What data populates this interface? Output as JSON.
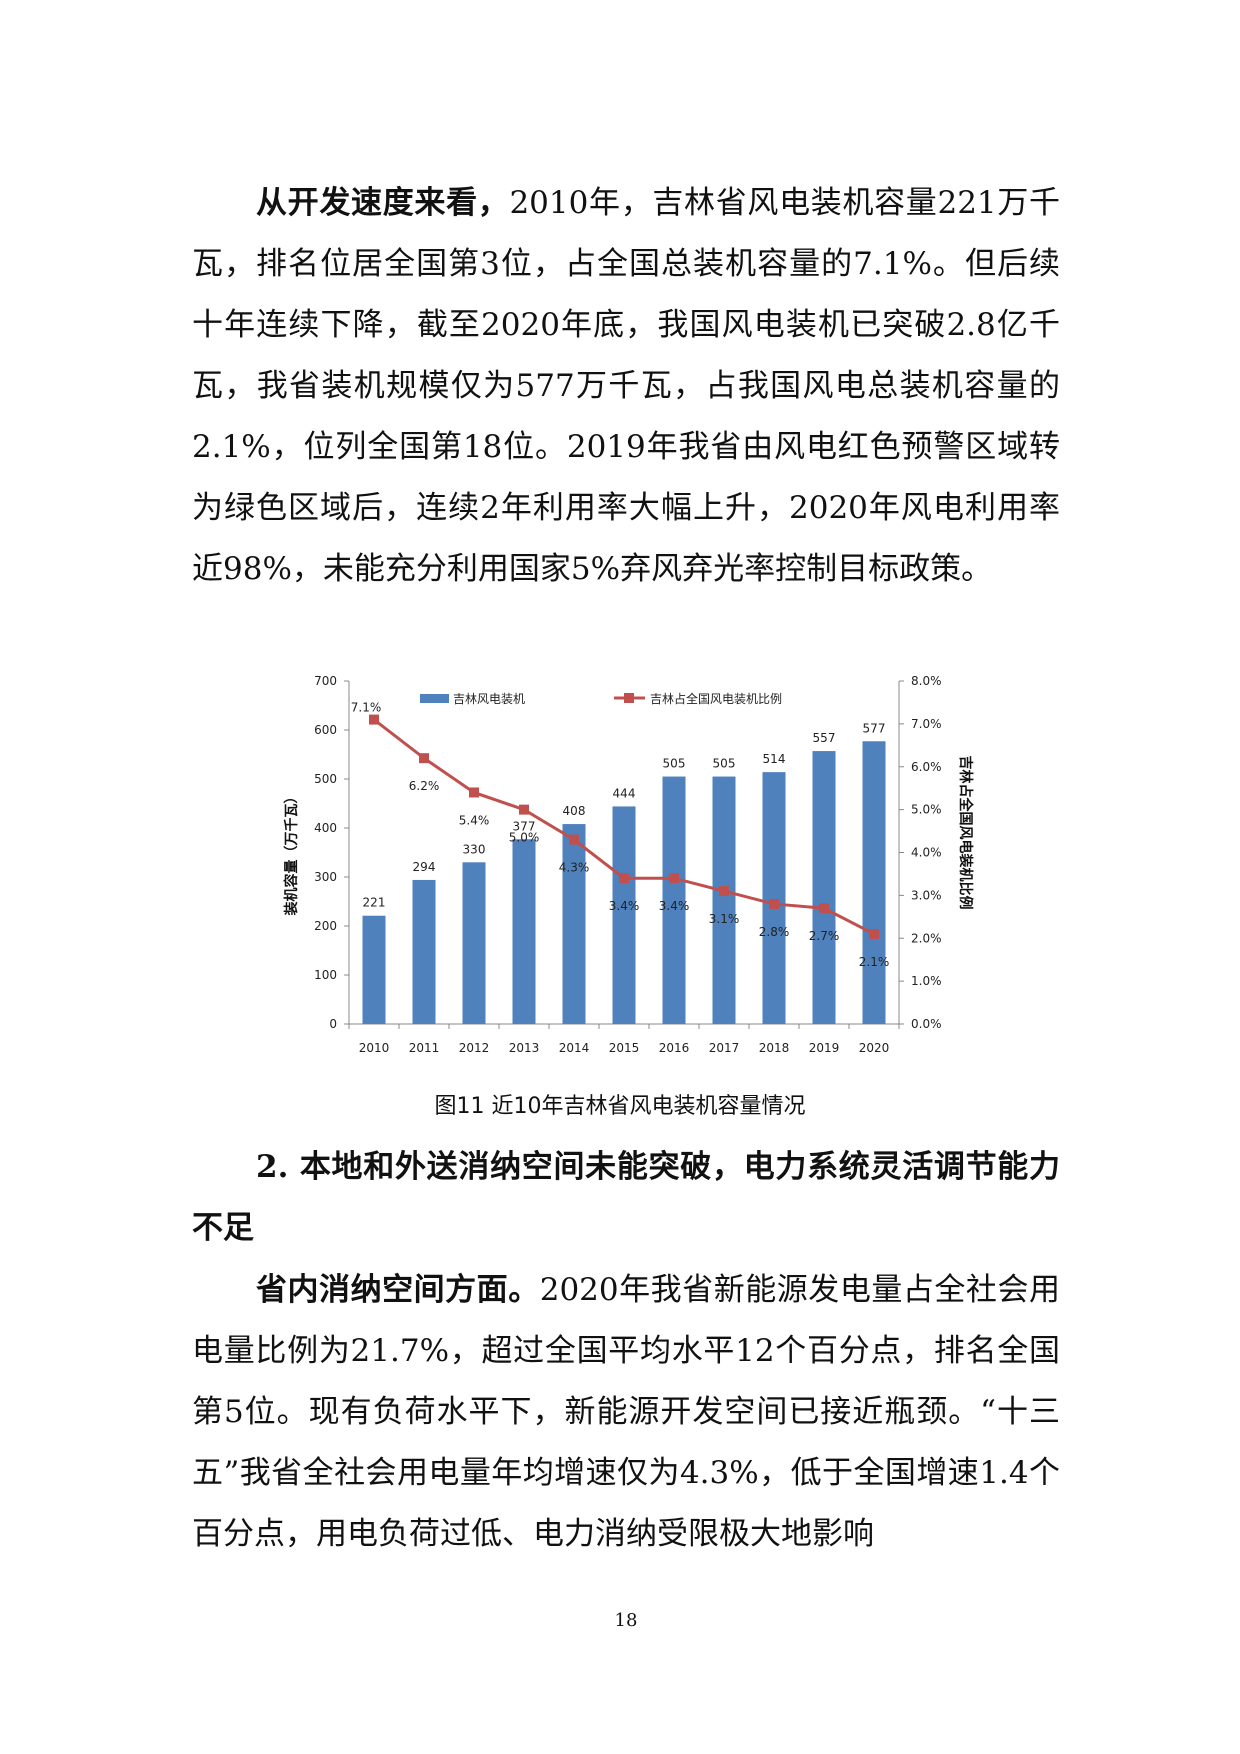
{
  "paragraph1": {
    "lead": "从开发速度来看，",
    "text": "2010年，吉林省风电装机容量221万千瓦，排名位居全国第3位，占全国总装机容量的7.1%。但后续十年连续下降，截至2020年底，我国风电装机已突破2.8亿千瓦，我省装机规模仅为577万千瓦，占我国风电总装机容量的2.1%，位列全国第18位。2019年我省由风电红色预警区域转为绿色区域后，连续2年利用率大幅上升，2020年风电利用率近98%，未能充分利用国家5%弃风弃光率控制目标政策。"
  },
  "figure_caption": "图11  近10年吉林省风电装机容量情况",
  "heading": "2. 本地和外送消纳空间未能突破，电力系统灵活调节能力不足",
  "paragraph2": {
    "lead": "省内消纳空间方面。",
    "text": "2020年我省新能源发电量占全社会用电量比例为21.7%，超过全国平均水平12个百分点，排名全国第5位。现有负荷水平下，新能源开发空间已接近瓶颈。“十三五”我省全社会用电量年均增速仅为4.3%，低于全国增速1.4个百分点，用电负荷过低、电力消纳受限极大地影响"
  },
  "page_number": "18",
  "chart_data": {
    "type": "bar+line",
    "categories": [
      "2010",
      "2011",
      "2012",
      "2013",
      "2014",
      "2015",
      "2016",
      "2017",
      "2018",
      "2019",
      "2020"
    ],
    "series": [
      {
        "name": "吉林风电装机",
        "type": "bar",
        "axis": "left",
        "color": "#4f81bd",
        "values": [
          221,
          294,
          330,
          377,
          408,
          444,
          505,
          505,
          514,
          557,
          577
        ],
        "labels": [
          "221",
          "294",
          "330",
          "377",
          "408",
          "444",
          "505",
          "505",
          "514",
          "557",
          "577"
        ]
      },
      {
        "name": "吉林占全国风电装机比例",
        "type": "line",
        "axis": "right",
        "color": "#c0504d",
        "values": [
          7.1,
          6.2,
          5.4,
          5.0,
          4.3,
          3.4,
          3.4,
          3.1,
          2.8,
          2.7,
          2.1
        ],
        "labels": [
          "7.1%",
          "6.2%",
          "5.4%",
          "5.0%",
          "4.3%",
          "3.4%",
          "3.4%",
          "3.1%",
          "2.8%",
          "2.7%",
          "2.1%"
        ]
      }
    ],
    "ylabel": "装机容量（万千瓦）",
    "y2label": "吉林占全国风电装机比例",
    "ylim": [
      0,
      700
    ],
    "y2lim": [
      0,
      8
    ],
    "yticks": [
      "0",
      "100",
      "200",
      "300",
      "400",
      "500",
      "600",
      "700"
    ],
    "y2ticks": [
      "0.0%",
      "1.0%",
      "2.0%",
      "3.0%",
      "4.0%",
      "5.0%",
      "6.0%",
      "7.0%",
      "8.0%"
    ],
    "grid": false,
    "legend": "top"
  }
}
